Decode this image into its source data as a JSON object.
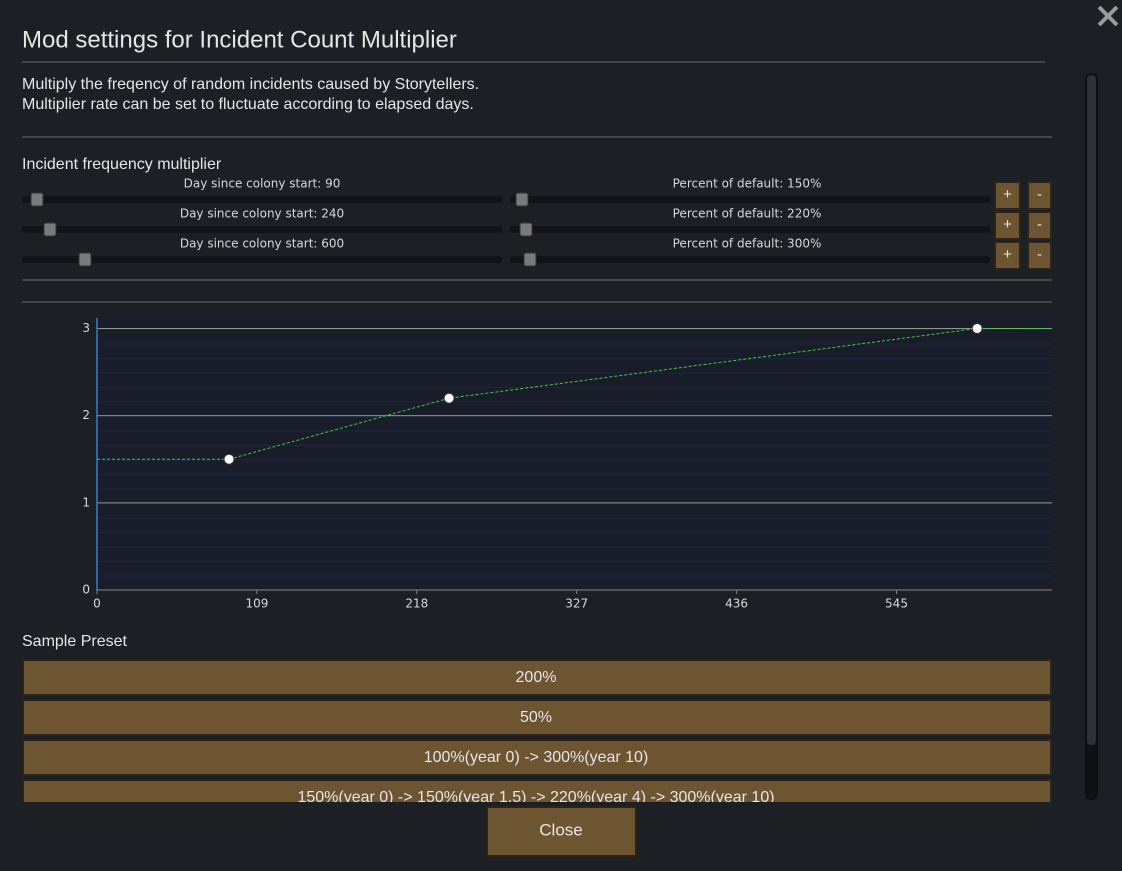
{
  "window_title": "Mod settings for Incident Count Multiplier",
  "description": [
    "Multiply the freqency of random incidents caused by Storytellers.",
    "Multiplier rate can be set to fluctuate according to elapsed days."
  ],
  "section_label": "Incident frequency multiplier",
  "rows": [
    {
      "day_label": "Day since colony start: 90",
      "percent_label": "Percent of default: 150%",
      "plus": "+",
      "minus": "-"
    },
    {
      "day_label": "Day since colony start: 240",
      "percent_label": "Percent of default: 220%",
      "plus": "+",
      "minus": "-"
    },
    {
      "day_label": "Day since colony start: 600",
      "percent_label": "Percent of default: 300%",
      "plus": "+",
      "minus": "-"
    }
  ],
  "chart_data": {
    "type": "line",
    "x": [
      90,
      240,
      600
    ],
    "values": [
      1.5,
      2.2,
      3
    ],
    "color": "#3fcf3f",
    "xlim": [
      0,
      651
    ],
    "ylim": [
      0,
      3.12
    ],
    "xticks": [
      0,
      109,
      218,
      327,
      436,
      545
    ],
    "yticks": [
      0,
      1,
      2,
      3
    ],
    "grid": true
  },
  "preset_label": "Sample Preset",
  "presets": [
    "200%",
    "50%",
    "100%(year 0) -> 300%(year 10)",
    "150%(year 0) -> 150%(year 1.5) -> 220%(year 4) -> 300%(year 10)"
  ],
  "close_button": "Close"
}
